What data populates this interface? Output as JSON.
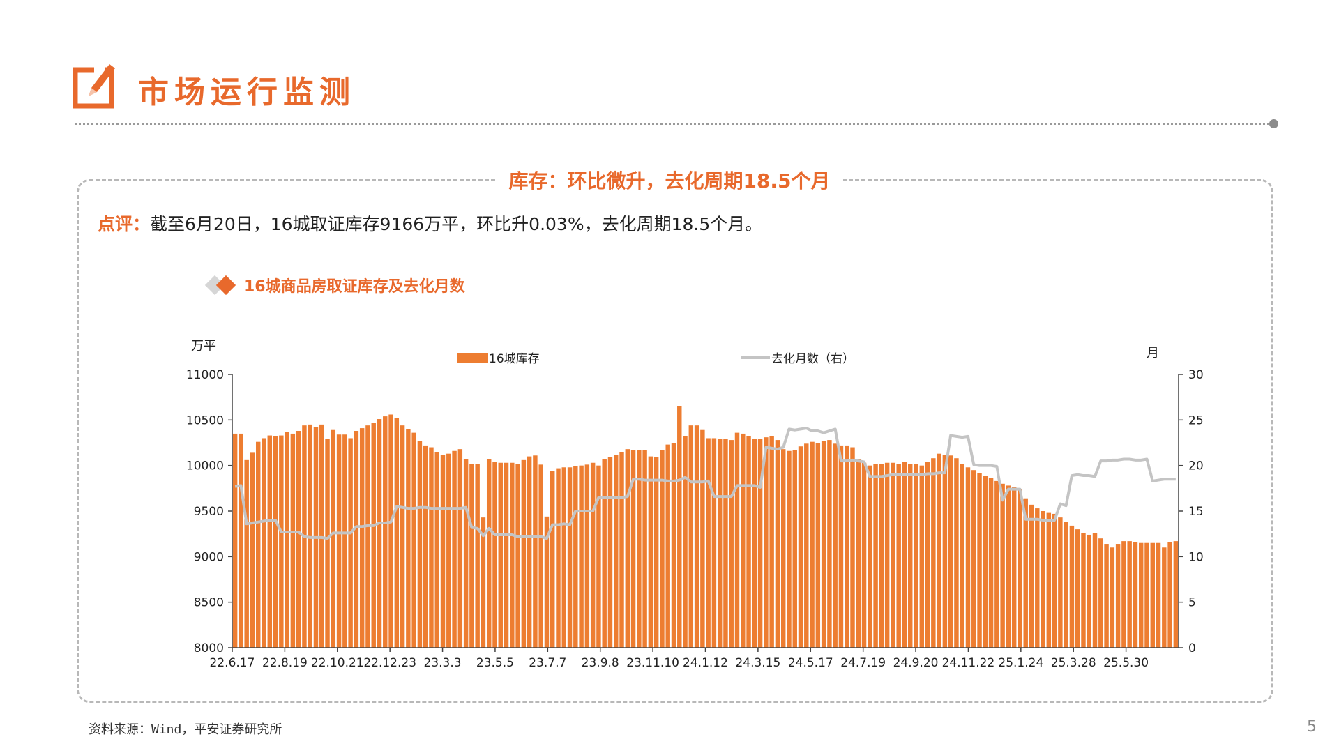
{
  "header": {
    "title": "市场运行监测",
    "icon": "pencil-note-icon"
  },
  "panel": {
    "title": "库存：环比微升，去化周期18.5个月",
    "comment_label": "点评：",
    "comment_text": "截至6月20日，16城取证库存9166万平，环比升0.03%，去化周期18.5个月。"
  },
  "chart_caption": "16城商品房取证库存及去化月数",
  "colors": {
    "accent": "#e8692c",
    "bar": "#ed7d31",
    "line": "#c4c4c4"
  },
  "chart_data": {
    "type": "bar",
    "title": "16城商品房取证库存及去化月数",
    "y_left_unit": "万平",
    "y_right_unit": "月",
    "ylim_left": [
      8000,
      11000
    ],
    "ylim_right": [
      0,
      30
    ],
    "yticks_left": [
      8000,
      8500,
      9000,
      9500,
      10000,
      10500,
      11000
    ],
    "yticks_right": [
      0,
      5,
      10,
      15,
      20,
      25,
      30
    ],
    "x_tick_labels": [
      "22.6.17",
      "22.8.19",
      "22.10.21",
      "22.12.23",
      "23.3.3",
      "23.5.5",
      "23.7.7",
      "23.9.8",
      "23.11.10",
      "24.1.12",
      "24.3.15",
      "24.5.17",
      "24.7.19",
      "24.9.20",
      "24.11.22",
      "25.1.24",
      "25.3.28",
      "25.5.30"
    ],
    "legend": [
      "16城库存",
      "去化月数（右）"
    ],
    "series": [
      {
        "name": "16城库存",
        "type": "bar",
        "axis": "left",
        "values": [
          10350,
          10350,
          10060,
          10140,
          10260,
          10300,
          10330,
          10320,
          10330,
          10370,
          10350,
          10380,
          10440,
          10450,
          10420,
          10450,
          10290,
          10390,
          10340,
          10340,
          10300,
          10380,
          10410,
          10440,
          10470,
          10510,
          10540,
          10560,
          10520,
          10440,
          10400,
          10360,
          10270,
          10220,
          10200,
          10150,
          10120,
          10130,
          10160,
          10180,
          10070,
          10020,
          10020,
          9430,
          10070,
          10040,
          10030,
          10030,
          10030,
          10020,
          10060,
          10100,
          10110,
          10010,
          9440,
          9940,
          9970,
          9980,
          9980,
          9990,
          10000,
          10010,
          10030,
          10000,
          10070,
          10090,
          10120,
          10150,
          10180,
          10170,
          10170,
          10170,
          10100,
          10090,
          10170,
          10230,
          10250,
          10650,
          10320,
          10440,
          10440,
          10390,
          10300,
          10300,
          10290,
          10290,
          10280,
          10360,
          10350,
          10320,
          10290,
          10290,
          10310,
          10320,
          10280,
          10180,
          10160,
          10170,
          10210,
          10240,
          10260,
          10250,
          10270,
          10280,
          10240,
          10220,
          10220,
          10200,
          10070,
          10030,
          10000,
          10020,
          10020,
          10030,
          10030,
          10020,
          10040,
          10020,
          10020,
          10000,
          10040,
          10080,
          10130,
          10120,
          10110,
          10080,
          10020,
          9980,
          9950,
          9920,
          9890,
          9860,
          9830,
          9800,
          9780,
          9760,
          9740,
          9640,
          9570,
          9530,
          9500,
          9480,
          9470,
          9430,
          9380,
          9340,
          9300,
          9260,
          9240,
          9260,
          9200,
          9140,
          9100,
          9140,
          9170,
          9170,
          9160,
          9150,
          9150,
          9150,
          9150,
          9100,
          9160,
          9170
        ]
      },
      {
        "name": "去化月数（右）",
        "type": "line",
        "axis": "right",
        "values": [
          17.7,
          17.8,
          13.6,
          13.7,
          13.8,
          13.9,
          14.0,
          14.0,
          12.7,
          12.7,
          12.7,
          12.7,
          12.2,
          12.1,
          12.1,
          12.1,
          12.0,
          12.6,
          12.6,
          12.6,
          12.6,
          13.3,
          13.3,
          13.4,
          13.4,
          13.7,
          13.7,
          13.8,
          15.5,
          15.4,
          15.3,
          15.3,
          15.4,
          15.4,
          15.3,
          15.3,
          15.3,
          15.3,
          15.3,
          15.3,
          15.4,
          13.2,
          13.1,
          12.3,
          13.1,
          12.4,
          12.4,
          12.4,
          12.4,
          12.2,
          12.2,
          12.2,
          12.2,
          12.2,
          12.0,
          13.5,
          13.5,
          13.6,
          13.5,
          15.0,
          15.0,
          15.0,
          15.0,
          16.5,
          16.5,
          16.5,
          16.5,
          16.5,
          16.6,
          18.5,
          18.5,
          18.4,
          18.4,
          18.4,
          18.4,
          18.3,
          18.3,
          18.4,
          18.7,
          18.2,
          18.2,
          18.2,
          18.3,
          16.6,
          16.6,
          16.6,
          16.6,
          17.8,
          17.8,
          17.8,
          17.8,
          17.6,
          22.0,
          21.9,
          21.8,
          22.0,
          24.0,
          23.9,
          24.0,
          24.1,
          23.8,
          23.8,
          23.6,
          23.8,
          24.0,
          20.5,
          20.5,
          20.6,
          20.5,
          20.4,
          18.8,
          18.8,
          18.8,
          18.9,
          19.0,
          19.0,
          19.0,
          19.0,
          19.0,
          19.0,
          19.1,
          19.1,
          19.2,
          19.2,
          23.3,
          23.2,
          23.1,
          23.2,
          20.1,
          20.0,
          20.0,
          20.0,
          19.9,
          16.2,
          17.4,
          17.4,
          17.4,
          14.1,
          14.1,
          14.1,
          14.0,
          14.0,
          14.0,
          15.8,
          15.6,
          18.9,
          19.0,
          18.9,
          18.9,
          18.8,
          20.5,
          20.5,
          20.6,
          20.6,
          20.7,
          20.7,
          20.6,
          20.6,
          20.7,
          18.3,
          18.4,
          18.5,
          18.5,
          18.5
        ]
      }
    ],
    "grid": false,
    "legend_position": "top"
  },
  "source_text": "资料来源：Wind，平安证券研究所",
  "page_number": "5"
}
